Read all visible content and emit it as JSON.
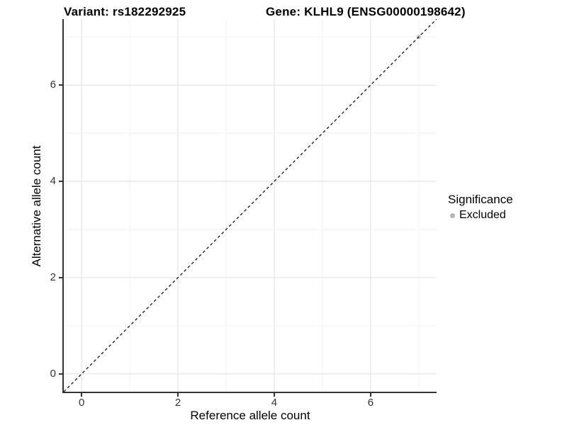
{
  "chart_data": {
    "type": "scatter",
    "title_left": "Variant: rs182292925",
    "title_right": "Gene: KLHL9 (ENSG00000198642)",
    "xlabel": "Reference allele count",
    "ylabel": "Alternative allele count",
    "xlim": [
      -0.37,
      7.37
    ],
    "ylim": [
      -0.37,
      7.37
    ],
    "x_ticks": [
      0,
      2,
      4,
      6
    ],
    "y_ticks": [
      0,
      2,
      4,
      6
    ],
    "x_minor": [
      1,
      3,
      5,
      7
    ],
    "y_minor": [
      1,
      3,
      5,
      7
    ],
    "grid": "major+minor",
    "series": [
      {
        "name": "Excluded",
        "color": "#c6c6c6",
        "points": [
          {
            "x": 7,
            "y": 7
          }
        ]
      }
    ],
    "identity_line": {
      "slope": 1,
      "intercept": 0,
      "style": "dashed",
      "color": "#111111"
    },
    "legend": {
      "title": "Significance",
      "position": "right",
      "items": [
        {
          "label": "Excluded",
          "color": "#b3b3b3"
        }
      ]
    },
    "colors": {
      "axis_line": "#333333",
      "grid_major": "#e4e4e4",
      "grid_minor": "#f2f2f2",
      "tick_label": "#333333"
    }
  }
}
